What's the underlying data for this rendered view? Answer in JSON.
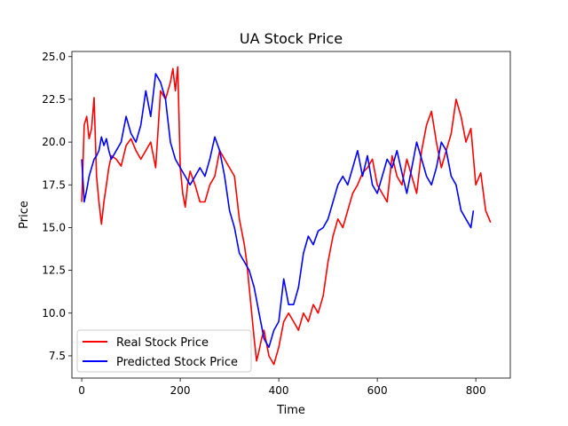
{
  "chart_data": {
    "type": "line",
    "title": "UA Stock Price",
    "xlabel": "Time",
    "ylabel": "Price",
    "xlim": [
      -20,
      870
    ],
    "ylim": [
      6.2,
      25.3
    ],
    "xticks": [
      0,
      200,
      400,
      600,
      800
    ],
    "xtick_labels": [
      "0",
      "200",
      "400",
      "600",
      "800"
    ],
    "yticks": [
      7.5,
      10.0,
      12.5,
      15.0,
      17.5,
      20.0,
      22.5,
      25.0
    ],
    "ytick_labels": [
      "7.5",
      "10.0",
      "12.5",
      "15.0",
      "17.5",
      "20.0",
      "22.5",
      "25.0"
    ],
    "grid": false,
    "legend_position": "lower-left",
    "series": [
      {
        "name": "Real Stock Price",
        "color": "#ff0000",
        "x": [
          0,
          5,
          10,
          15,
          20,
          25,
          30,
          35,
          40,
          45,
          50,
          55,
          60,
          70,
          80,
          90,
          100,
          110,
          120,
          130,
          140,
          150,
          160,
          170,
          180,
          185,
          190,
          195,
          200,
          205,
          210,
          215,
          220,
          230,
          240,
          250,
          260,
          270,
          280,
          290,
          300,
          310,
          320,
          330,
          335,
          340,
          345,
          350,
          355,
          360,
          365,
          370,
          380,
          390,
          400,
          410,
          420,
          430,
          440,
          450,
          460,
          470,
          480,
          490,
          500,
          510,
          520,
          530,
          540,
          550,
          560,
          570,
          580,
          590,
          600,
          610,
          620,
          630,
          640,
          650,
          660,
          670,
          680,
          690,
          700,
          710,
          720,
          730,
          740,
          750,
          760,
          770,
          780,
          790,
          800,
          810,
          820,
          830
        ],
        "y": [
          16.5,
          21.0,
          21.5,
          20.2,
          20.8,
          22.6,
          18.0,
          16.5,
          15.2,
          16.5,
          17.5,
          18.5,
          19.2,
          19.0,
          18.6,
          19.8,
          20.2,
          19.5,
          19.0,
          19.5,
          20.0,
          18.5,
          23.0,
          22.5,
          23.5,
          24.3,
          23.0,
          24.4,
          18.5,
          17.0,
          16.2,
          17.5,
          18.3,
          17.5,
          16.5,
          16.5,
          17.5,
          18.0,
          19.5,
          19.0,
          18.5,
          18.0,
          15.5,
          14.0,
          13.0,
          11.5,
          10.0,
          8.5,
          7.2,
          7.8,
          8.5,
          9.0,
          7.5,
          7.0,
          8.0,
          9.5,
          10.0,
          9.5,
          9.0,
          10.0,
          9.5,
          10.5,
          10.0,
          11.0,
          13.0,
          14.5,
          15.5,
          15.0,
          16.0,
          17.0,
          17.5,
          18.2,
          18.5,
          19.0,
          17.5,
          17.0,
          16.5,
          19.2,
          18.0,
          17.5,
          19.0,
          18.0,
          17.0,
          19.5,
          21.0,
          21.8,
          20.0,
          18.5,
          19.5,
          20.5,
          22.5,
          21.5,
          20.0,
          20.8,
          17.5,
          18.2,
          16.0,
          15.3
        ]
      },
      {
        "name": "Predicted Stock Price",
        "color": "#0000ff",
        "x": [
          0,
          5,
          10,
          15,
          20,
          25,
          30,
          35,
          40,
          45,
          50,
          55,
          60,
          70,
          80,
          90,
          100,
          110,
          120,
          130,
          140,
          150,
          160,
          170,
          180,
          190,
          200,
          210,
          220,
          230,
          240,
          250,
          260,
          270,
          280,
          290,
          300,
          310,
          320,
          330,
          340,
          350,
          360,
          370,
          380,
          390,
          400,
          410,
          420,
          430,
          440,
          450,
          460,
          470,
          480,
          490,
          500,
          510,
          520,
          530,
          540,
          550,
          560,
          570,
          580,
          590,
          600,
          610,
          620,
          630,
          640,
          650,
          660,
          670,
          680,
          690,
          700,
          710,
          720,
          730,
          740,
          750,
          760,
          770,
          780,
          790,
          795
        ],
        "y": [
          19.0,
          16.5,
          17.2,
          18.0,
          18.5,
          19.0,
          19.2,
          19.5,
          20.3,
          19.8,
          20.2,
          19.5,
          19.0,
          19.5,
          20.0,
          21.5,
          20.5,
          20.0,
          21.0,
          23.0,
          21.5,
          24.0,
          23.5,
          22.5,
          20.0,
          19.0,
          18.5,
          18.0,
          17.5,
          18.0,
          18.5,
          18.0,
          19.0,
          20.3,
          19.5,
          18.0,
          16.0,
          15.0,
          13.5,
          13.0,
          12.5,
          11.5,
          10.0,
          8.5,
          8.0,
          9.0,
          9.5,
          12.0,
          10.5,
          10.5,
          11.5,
          13.5,
          14.5,
          14.0,
          14.8,
          15.0,
          15.5,
          16.5,
          17.5,
          18.0,
          17.5,
          18.5,
          19.5,
          18.0,
          19.2,
          17.5,
          17.0,
          18.0,
          19.0,
          18.5,
          19.5,
          18.2,
          17.0,
          18.5,
          20.0,
          19.0,
          18.0,
          17.5,
          18.5,
          20.0,
          19.5,
          18.0,
          17.5,
          16.0,
          15.5,
          15.0,
          16.0
        ]
      }
    ]
  }
}
